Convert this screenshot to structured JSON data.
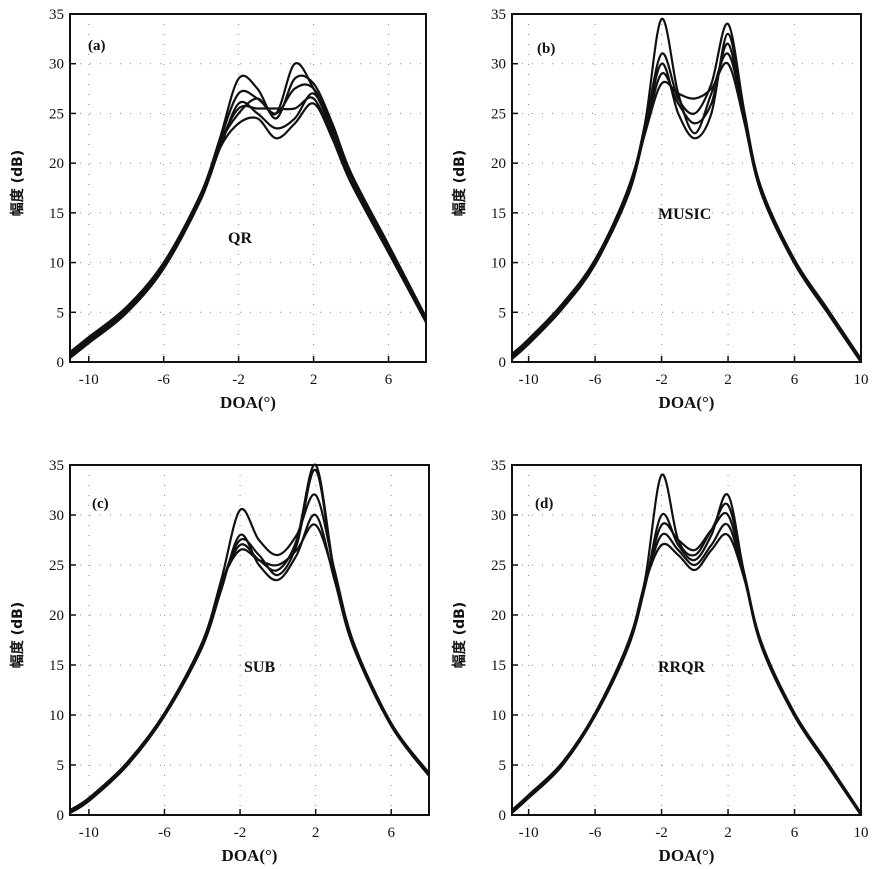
{
  "chart_data": [
    {
      "type": "line",
      "panel_label": "(a)",
      "method_label": "QR",
      "xlabel": "DOA(°)",
      "ylabel": "幅度 (dB)",
      "xlim": [
        -11,
        8
      ],
      "ylim": [
        0,
        35
      ],
      "xticks": [
        "-10",
        "-6",
        "-2",
        "2",
        "6"
      ],
      "yticks": [
        "0",
        "5",
        "10",
        "15",
        "20",
        "25",
        "30",
        "35"
      ],
      "grid": "dotted",
      "series": [
        {
          "x": [
            -11,
            -10,
            -8,
            -6,
            -4,
            -3,
            -2,
            -1,
            0,
            1,
            2,
            3,
            4,
            6,
            8
          ],
          "y": [
            1,
            2.5,
            5.5,
            10,
            17,
            22,
            25.5,
            25.5,
            25.5,
            25.5,
            26.5,
            22.5,
            18,
            11,
            4
          ]
        },
        {
          "x": [
            -11,
            -10,
            -8,
            -6,
            -4,
            -3,
            -2,
            -1,
            0,
            1,
            2,
            3,
            4,
            6,
            8
          ],
          "y": [
            0.5,
            2,
            5,
            9.5,
            16.5,
            21.5,
            26,
            25,
            23.5,
            24.5,
            27,
            23,
            18.5,
            11.5,
            4.5
          ]
        },
        {
          "x": [
            -11,
            -10,
            -8,
            -6,
            -4,
            -3,
            -2,
            -1,
            0,
            1,
            2,
            3,
            4,
            6,
            8
          ],
          "y": [
            0.8,
            2.3,
            5.3,
            9.8,
            17,
            22.5,
            28.5,
            27.5,
            24.5,
            28.5,
            28,
            24,
            19,
            11.8,
            4.5
          ]
        },
        {
          "x": [
            -11,
            -10,
            -8,
            -6,
            -4,
            -3,
            -2,
            -1,
            0,
            1,
            2,
            3,
            4,
            6,
            8
          ],
          "y": [
            0.6,
            2.1,
            5.1,
            9.6,
            16.8,
            22,
            25,
            26.5,
            25,
            30,
            27.5,
            23.5,
            18.5,
            11.5,
            4.2
          ]
        },
        {
          "x": [
            -11,
            -10,
            -8,
            -6,
            -4,
            -3,
            -2,
            -1,
            0,
            1,
            2,
            3,
            4,
            6,
            8
          ],
          "y": [
            0.4,
            1.9,
            4.9,
            9.4,
            16.4,
            21.5,
            24,
            24.5,
            22.5,
            24,
            26,
            22.5,
            18,
            11.2,
            4
          ]
        },
        {
          "x": [
            -11,
            -10,
            -8,
            -6,
            -4,
            -3,
            -2,
            -1,
            0,
            1,
            2,
            3,
            4,
            6,
            8
          ],
          "y": [
            0.7,
            2.2,
            5.2,
            9.7,
            16.9,
            22.3,
            27,
            26.5,
            25,
            27.5,
            27.5,
            23.5,
            18.8,
            11.6,
            4.3
          ]
        }
      ]
    },
    {
      "type": "line",
      "panel_label": "(b)",
      "method_label": "MUSIC",
      "xlabel": "DOA(°)",
      "ylabel": "幅度 (dB)",
      "xlim": [
        -11,
        10
      ],
      "ylim": [
        0,
        35
      ],
      "xticks": [
        "-10",
        "-6",
        "-2",
        "2",
        "6",
        "10"
      ],
      "yticks": [
        "0",
        "5",
        "10",
        "15",
        "20",
        "25",
        "30",
        "35"
      ],
      "grid": "dotted",
      "series": [
        {
          "x": [
            -11,
            -10,
            -8,
            -6,
            -4,
            -3,
            -2,
            -1,
            0,
            1,
            2,
            3,
            4,
            6,
            8,
            10
          ],
          "y": [
            0.5,
            2,
            5.5,
            10,
            17,
            23,
            29,
            26,
            24,
            26,
            32,
            24,
            17,
            10,
            5,
            0
          ]
        },
        {
          "x": [
            -11,
            -10,
            -8,
            -6,
            -4,
            -3,
            -2,
            -1,
            0,
            1,
            2,
            3,
            4,
            6,
            8,
            10
          ],
          "y": [
            0.8,
            2.3,
            5.8,
            10.3,
            17.5,
            24,
            34.5,
            27,
            23,
            27,
            31,
            24.5,
            17.5,
            10.3,
            5.3,
            0.3
          ]
        },
        {
          "x": [
            -11,
            -10,
            -8,
            -6,
            -4,
            -3,
            -2,
            -1,
            0,
            1,
            2,
            3,
            4,
            6,
            8,
            10
          ],
          "y": [
            0.3,
            1.8,
            5.3,
            9.8,
            17,
            23.5,
            31,
            26.5,
            25,
            28,
            34,
            25,
            17.2,
            10,
            5,
            0
          ]
        },
        {
          "x": [
            -11,
            -10,
            -8,
            -6,
            -4,
            -3,
            -2,
            -1,
            0,
            1,
            2,
            3,
            4,
            6,
            8,
            10
          ],
          "y": [
            0.6,
            2.1,
            5.6,
            10.1,
            17.2,
            23,
            28,
            27,
            26.5,
            27.5,
            30,
            24,
            17,
            10.1,
            5.1,
            0.1
          ]
        },
        {
          "x": [
            -11,
            -10,
            -8,
            -6,
            -4,
            -3,
            -2,
            -1,
            0,
            1,
            2,
            3,
            4,
            6,
            8,
            10
          ],
          "y": [
            0.4,
            1.9,
            5.4,
            9.9,
            16.8,
            23.2,
            30,
            25,
            22.5,
            25,
            33,
            24.5,
            17,
            9.9,
            4.9,
            0
          ]
        }
      ]
    },
    {
      "type": "line",
      "panel_label": "(c)",
      "method_label": "SUB",
      "xlabel": "DOA(°)",
      "ylabel": "幅度 (dB)",
      "xlim": [
        -11,
        8
      ],
      "ylim": [
        0,
        35
      ],
      "xticks": [
        "-10",
        "-6",
        "-2",
        "2",
        "6"
      ],
      "yticks": [
        "0",
        "5",
        "10",
        "15",
        "20",
        "25",
        "30",
        "35"
      ],
      "grid": "dotted",
      "series": [
        {
          "x": [
            -11,
            -10,
            -8,
            -6,
            -4,
            -3,
            -2,
            -1,
            0,
            1,
            2,
            3,
            4,
            6,
            8
          ],
          "y": [
            0.3,
            1.5,
            5,
            10,
            17,
            23,
            27.5,
            26,
            24,
            27,
            34.5,
            24,
            17,
            9,
            4
          ]
        },
        {
          "x": [
            -11,
            -10,
            -8,
            -6,
            -4,
            -3,
            -2,
            -1,
            0,
            1,
            2,
            3,
            4,
            6,
            8
          ],
          "y": [
            0.5,
            1.7,
            5.2,
            10.2,
            17.3,
            23.5,
            30.5,
            27.5,
            26,
            28,
            32,
            24.5,
            17.3,
            9.2,
            4.2
          ]
        },
        {
          "x": [
            -11,
            -10,
            -8,
            -6,
            -4,
            -3,
            -2,
            -1,
            0,
            1,
            2,
            3,
            4,
            6,
            8
          ],
          "y": [
            0.2,
            1.4,
            4.9,
            9.9,
            16.8,
            22.5,
            28,
            25,
            23.5,
            26,
            30,
            23.5,
            16.8,
            8.9,
            3.9
          ]
        },
        {
          "x": [
            -11,
            -10,
            -8,
            -6,
            -4,
            -3,
            -2,
            -1,
            0,
            1,
            2,
            3,
            4,
            6,
            8
          ],
          "y": [
            0.4,
            1.6,
            5.1,
            10.1,
            17.1,
            23.2,
            26.5,
            25.5,
            25,
            26.5,
            29,
            23.8,
            17,
            9.1,
            4.1
          ]
        },
        {
          "x": [
            -11,
            -10,
            -8,
            -6,
            -4,
            -3,
            -2,
            -1,
            0,
            1,
            2,
            3,
            4,
            6,
            8
          ],
          "y": [
            0.3,
            1.5,
            5,
            10,
            17,
            23,
            27,
            25.5,
            24.5,
            27.5,
            35,
            24.2,
            17.1,
            9,
            4
          ]
        }
      ]
    },
    {
      "type": "line",
      "panel_label": "(d)",
      "method_label": "RRQR",
      "xlabel": "DOA(°)",
      "ylabel": "幅度 (dB)",
      "xlim": [
        -11,
        10
      ],
      "ylim": [
        0,
        35
      ],
      "xticks": [
        "-10",
        "-6",
        "-2",
        "2",
        "6",
        "10"
      ],
      "yticks": [
        "0",
        "5",
        "10",
        "15",
        "20",
        "25",
        "30",
        "35"
      ],
      "grid": "dotted",
      "series": [
        {
          "x": [
            -11,
            -10,
            -8,
            -6,
            -4,
            -3,
            -2,
            -1,
            0,
            1,
            2,
            3,
            4,
            6,
            8,
            10
          ],
          "y": [
            0.3,
            1.8,
            5,
            10,
            17,
            23,
            28,
            26.5,
            25,
            27,
            29,
            23.5,
            17,
            10,
            5,
            0
          ]
        },
        {
          "x": [
            -11,
            -10,
            -8,
            -6,
            -4,
            -3,
            -2,
            -1,
            0,
            1,
            2,
            3,
            4,
            6,
            8,
            10
          ],
          "y": [
            0.5,
            2,
            5.2,
            10.2,
            17.3,
            23.5,
            34,
            27.5,
            26,
            28.5,
            31,
            24,
            17.3,
            10.2,
            5.2,
            0.2
          ]
        },
        {
          "x": [
            -11,
            -10,
            -8,
            -6,
            -4,
            -3,
            -2,
            -1,
            0,
            1,
            2,
            3,
            4,
            6,
            8,
            10
          ],
          "y": [
            0.2,
            1.7,
            4.9,
            9.9,
            16.8,
            22.8,
            30,
            27,
            25.5,
            28,
            32,
            23.8,
            16.9,
            9.9,
            4.9,
            0
          ]
        },
        {
          "x": [
            -11,
            -10,
            -8,
            -6,
            -4,
            -3,
            -2,
            -1,
            0,
            1,
            2,
            3,
            4,
            6,
            8,
            10
          ],
          "y": [
            0.4,
            1.9,
            5.1,
            10.1,
            17.1,
            23.2,
            27,
            26,
            24.5,
            26.5,
            28,
            23.5,
            17,
            10.1,
            5.1,
            0.1
          ]
        },
        {
          "x": [
            -11,
            -10,
            -8,
            -6,
            -4,
            -3,
            -2,
            -1,
            0,
            1,
            2,
            3,
            4,
            6,
            8,
            10
          ],
          "y": [
            0.3,
            1.8,
            5,
            10,
            17,
            23,
            29,
            27.5,
            26.5,
            28.5,
            30,
            23.8,
            17.1,
            10,
            5,
            0
          ]
        }
      ]
    }
  ]
}
